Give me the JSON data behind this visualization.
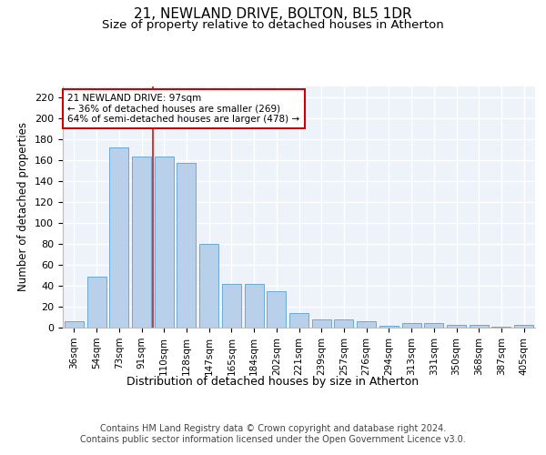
{
  "title": "21, NEWLAND DRIVE, BOLTON, BL5 1DR",
  "subtitle": "Size of property relative to detached houses in Atherton",
  "xlabel": "Distribution of detached houses by size in Atherton",
  "ylabel": "Number of detached properties",
  "categories": [
    "36sqm",
    "54sqm",
    "73sqm",
    "91sqm",
    "110sqm",
    "128sqm",
    "147sqm",
    "165sqm",
    "184sqm",
    "202sqm",
    "221sqm",
    "239sqm",
    "257sqm",
    "276sqm",
    "294sqm",
    "313sqm",
    "331sqm",
    "350sqm",
    "368sqm",
    "387sqm",
    "405sqm"
  ],
  "values": [
    6,
    49,
    172,
    163,
    163,
    157,
    80,
    42,
    42,
    35,
    14,
    8,
    8,
    6,
    2,
    4,
    4,
    3,
    3,
    1,
    3
  ],
  "bar_color": "#b8d0ea",
  "bar_edge_color": "#6aaad4",
  "background_color": "#eef2f9",
  "grid_color": "#ffffff",
  "red_line_x": 3.5,
  "annotation_text": "21 NEWLAND DRIVE: 97sqm\n← 36% of detached houses are smaller (269)\n64% of semi-detached houses are larger (478) →",
  "annotation_box_color": "#ffffff",
  "annotation_box_edge_color": "#cc0000",
  "ylim": [
    0,
    230
  ],
  "yticks": [
    0,
    20,
    40,
    60,
    80,
    100,
    120,
    140,
    160,
    180,
    200,
    220
  ],
  "footer_text": "Contains HM Land Registry data © Crown copyright and database right 2024.\nContains public sector information licensed under the Open Government Licence v3.0.",
  "title_fontsize": 11,
  "subtitle_fontsize": 9.5,
  "xlabel_fontsize": 9,
  "ylabel_fontsize": 8.5,
  "footer_fontsize": 7,
  "tick_fontsize": 7.5,
  "ytick_fontsize": 8
}
